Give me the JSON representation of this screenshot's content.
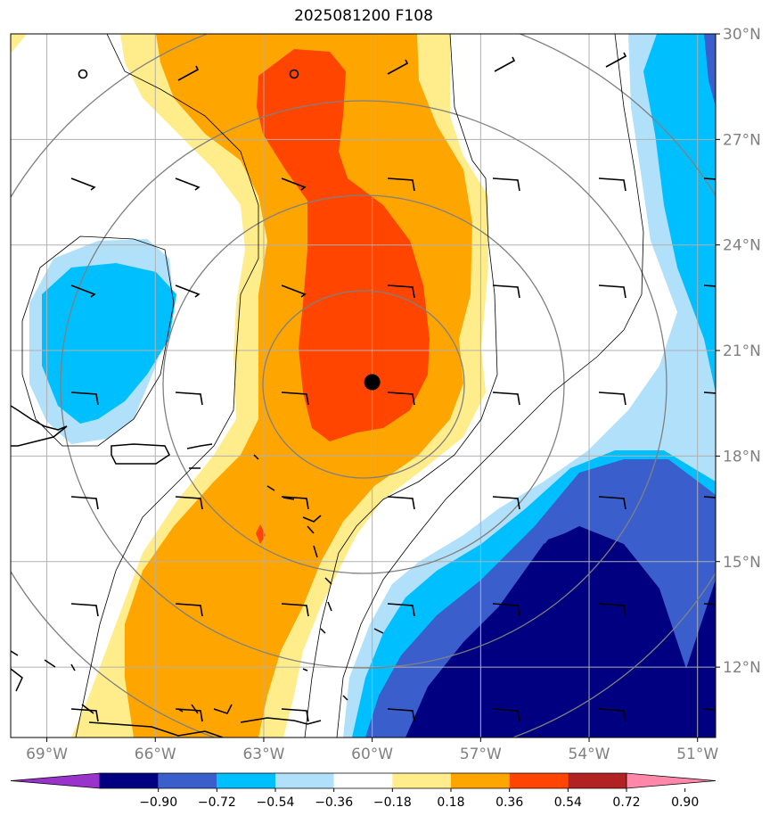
{
  "title": "2025081200 F108",
  "map": {
    "lon_ticks": [
      {
        "value": -69,
        "label": "69°W"
      },
      {
        "value": -66,
        "label": "66°W"
      },
      {
        "value": -63,
        "label": "63°W"
      },
      {
        "value": -60,
        "label": "60°W"
      },
      {
        "value": -57,
        "label": "57°W"
      },
      {
        "value": -54,
        "label": "54°W"
      },
      {
        "value": -51,
        "label": "51°W"
      }
    ],
    "lat_ticks": [
      {
        "value": 30,
        "label": "30°N"
      },
      {
        "value": 27,
        "label": "27°N"
      },
      {
        "value": 24,
        "label": "24°N"
      },
      {
        "value": 21,
        "label": "21°N"
      },
      {
        "value": 18,
        "label": "18°N"
      },
      {
        "value": 15,
        "label": "15°N"
      },
      {
        "value": 12,
        "label": "12°N"
      }
    ],
    "center_marker": {
      "lon": -60,
      "lat": 20.1
    },
    "grid": true
  },
  "colorbar": {
    "levels": [
      "−0.90",
      "−0.72",
      "−0.54",
      "−0.36",
      "−0.18",
      "0.18",
      "0.36",
      "0.54",
      "0.72",
      "0.90"
    ],
    "colors": [
      "#9933cc",
      "#000080",
      "#3a5fcd",
      "#00bfff",
      "#b0e0fa",
      "#ffffff",
      "#ffec8b",
      "#ffa500",
      "#ff4500",
      "#b22222",
      "#ff88aa"
    ]
  }
}
